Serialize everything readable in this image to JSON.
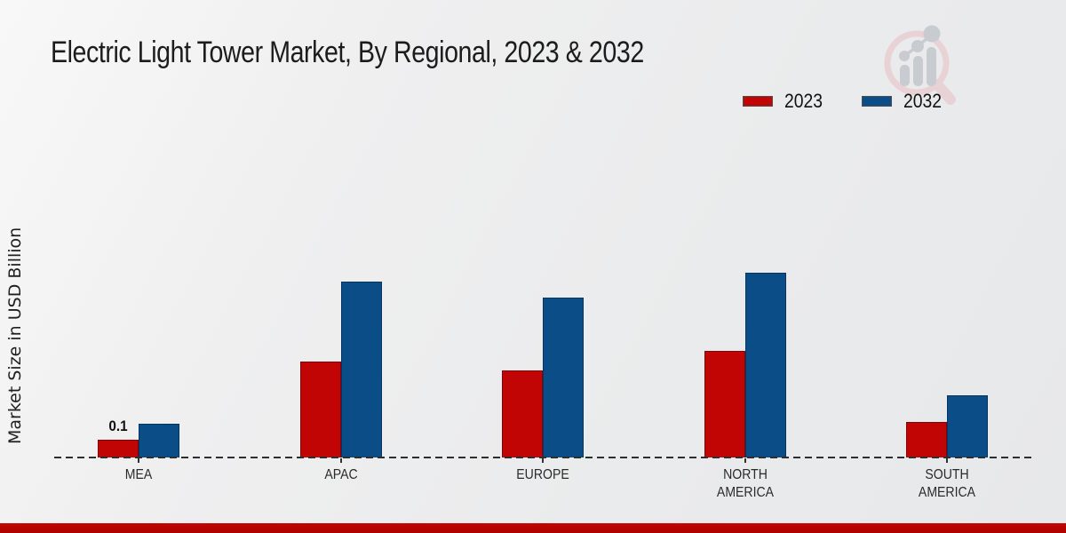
{
  "title": "Electric Light Tower Market, By Regional, 2023 & 2032",
  "ylabel": "Market Size in USD Billion",
  "legend": [
    {
      "label": "2023",
      "color": "#c10505"
    },
    {
      "label": "2032",
      "color": "#0b4d87"
    }
  ],
  "watermark_icon": "magnifier-growth-chart-logo",
  "bottom_strip_color": "#b80300",
  "chart_data": {
    "type": "bar",
    "title": "Electric Light Tower Market, By Regional, 2023 & 2032",
    "ylabel": "Market Size in USD Billion",
    "xlabel": "",
    "categories": [
      "MEA",
      "APAC",
      "EUROPE",
      "NORTH AMERICA",
      "SOUTH AMERICA"
    ],
    "series": [
      {
        "name": "2023",
        "color": "#c10505",
        "values": [
          0.1,
          0.54,
          0.49,
          0.6,
          0.2
        ]
      },
      {
        "name": "2032",
        "color": "#0b4d87",
        "values": [
          0.19,
          0.99,
          0.9,
          1.04,
          0.35
        ]
      }
    ],
    "annotations": [
      {
        "category": "MEA",
        "series": "2023",
        "text": "0.1"
      }
    ],
    "ylim": [
      0,
      1.2
    ],
    "grid": false,
    "legend_position": "top-right",
    "baseline_style": "dashed",
    "units": "USD Billion"
  }
}
